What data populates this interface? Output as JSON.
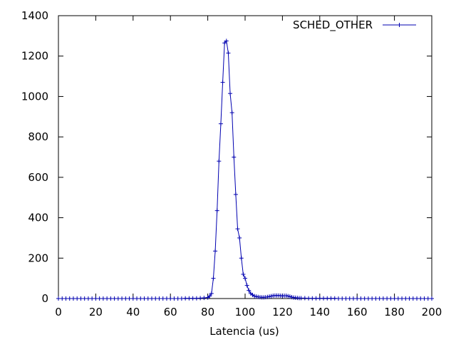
{
  "chart_data": {
    "type": "line",
    "title": "",
    "xlabel": "Latencia (us)",
    "ylabel": "",
    "xlim": [
      0,
      200
    ],
    "ylim": [
      0,
      1400
    ],
    "xticks": [
      0,
      20,
      40,
      60,
      80,
      100,
      120,
      140,
      160,
      180,
      200
    ],
    "yticks": [
      0,
      200,
      400,
      600,
      800,
      1000,
      1200,
      1400
    ],
    "grid": false,
    "legend_position": "top-right",
    "series": [
      {
        "name": "SCHED_OTHER",
        "color": "#0000b0",
        "marker": "plus",
        "points": [
          [
            0,
            0
          ],
          [
            2,
            0
          ],
          [
            4,
            0
          ],
          [
            6,
            0
          ],
          [
            8,
            0
          ],
          [
            10,
            0
          ],
          [
            12,
            0
          ],
          [
            14,
            0
          ],
          [
            16,
            0
          ],
          [
            18,
            0
          ],
          [
            20,
            0
          ],
          [
            22,
            0
          ],
          [
            24,
            0
          ],
          [
            26,
            0
          ],
          [
            28,
            0
          ],
          [
            30,
            0
          ],
          [
            32,
            0
          ],
          [
            34,
            0
          ],
          [
            36,
            0
          ],
          [
            38,
            0
          ],
          [
            40,
            0
          ],
          [
            42,
            0
          ],
          [
            44,
            0
          ],
          [
            46,
            0
          ],
          [
            48,
            0
          ],
          [
            50,
            0
          ],
          [
            52,
            0
          ],
          [
            54,
            0
          ],
          [
            56,
            0
          ],
          [
            58,
            0
          ],
          [
            60,
            0
          ],
          [
            62,
            0
          ],
          [
            64,
            0
          ],
          [
            66,
            0
          ],
          [
            68,
            1
          ],
          [
            70,
            1
          ],
          [
            72,
            1
          ],
          [
            74,
            1
          ],
          [
            76,
            2
          ],
          [
            78,
            3
          ],
          [
            80,
            5
          ],
          [
            81,
            12
          ],
          [
            82,
            25
          ],
          [
            83,
            100
          ],
          [
            84,
            235
          ],
          [
            85,
            435
          ],
          [
            86,
            680
          ],
          [
            87,
            865
          ],
          [
            88,
            1070
          ],
          [
            89,
            1265
          ],
          [
            90,
            1275
          ],
          [
            91,
            1215
          ],
          [
            92,
            1015
          ],
          [
            93,
            920
          ],
          [
            94,
            700
          ],
          [
            95,
            515
          ],
          [
            96,
            345
          ],
          [
            97,
            300
          ],
          [
            98,
            200
          ],
          [
            99,
            120
          ],
          [
            100,
            100
          ],
          [
            101,
            65
          ],
          [
            102,
            40
          ],
          [
            103,
            25
          ],
          [
            104,
            18
          ],
          [
            105,
            12
          ],
          [
            106,
            10
          ],
          [
            107,
            8
          ],
          [
            108,
            7
          ],
          [
            109,
            6
          ],
          [
            110,
            6
          ],
          [
            111,
            7
          ],
          [
            112,
            8
          ],
          [
            113,
            10
          ],
          [
            114,
            12
          ],
          [
            115,
            14
          ],
          [
            116,
            15
          ],
          [
            117,
            15
          ],
          [
            118,
            15
          ],
          [
            119,
            14
          ],
          [
            120,
            13
          ],
          [
            121,
            14
          ],
          [
            122,
            14
          ],
          [
            123,
            12
          ],
          [
            124,
            10
          ],
          [
            125,
            7
          ],
          [
            126,
            5
          ],
          [
            127,
            4
          ],
          [
            128,
            3
          ],
          [
            129,
            2
          ],
          [
            130,
            2
          ],
          [
            132,
            2
          ],
          [
            134,
            1
          ],
          [
            136,
            1
          ],
          [
            138,
            1
          ],
          [
            140,
            1
          ],
          [
            142,
            1
          ],
          [
            144,
            1
          ],
          [
            146,
            1
          ],
          [
            148,
            1
          ],
          [
            150,
            0
          ],
          [
            152,
            0
          ],
          [
            154,
            0
          ],
          [
            156,
            0
          ],
          [
            158,
            0
          ],
          [
            160,
            0
          ],
          [
            162,
            0
          ],
          [
            164,
            0
          ],
          [
            166,
            0
          ],
          [
            168,
            0
          ],
          [
            170,
            0
          ],
          [
            172,
            0
          ],
          [
            174,
            0
          ],
          [
            176,
            0
          ],
          [
            178,
            0
          ],
          [
            180,
            0
          ],
          [
            182,
            0
          ],
          [
            184,
            0
          ],
          [
            186,
            0
          ],
          [
            188,
            0
          ],
          [
            190,
            0
          ],
          [
            192,
            0
          ],
          [
            194,
            0
          ],
          [
            196,
            0
          ],
          [
            198,
            0
          ],
          [
            200,
            0
          ]
        ]
      }
    ]
  }
}
